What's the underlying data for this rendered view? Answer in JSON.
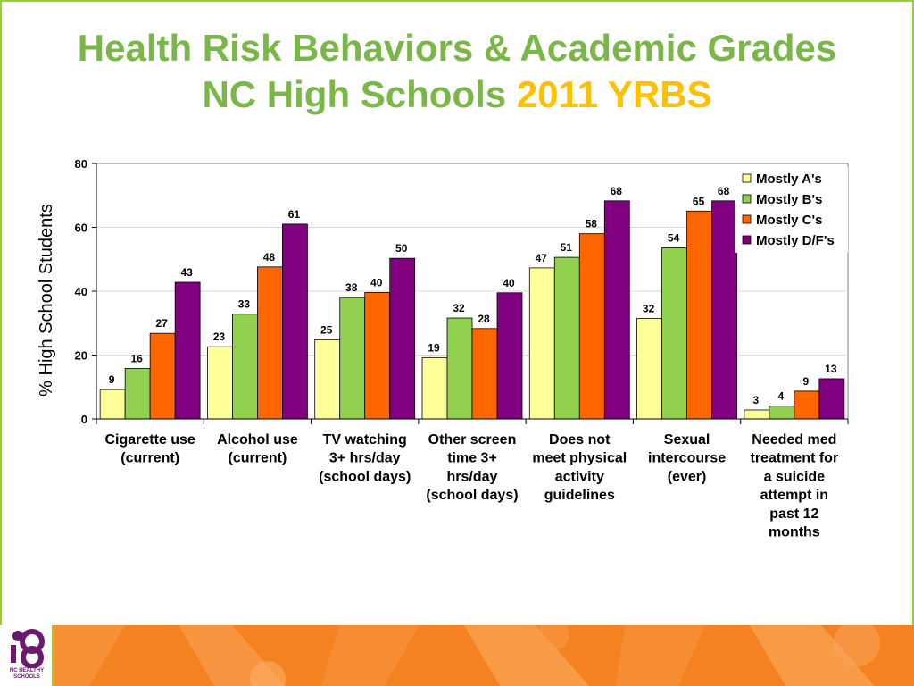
{
  "slide": {
    "title_line1": "Health Risk Behaviors & Academic Grades",
    "title_line2_green": "NC High Schools",
    "title_line2_accent": "2011 YRBS",
    "logo_text": "NC HEALTHY SCHOOLS",
    "colors": {
      "title_green": "#7AB648",
      "title_accent": "#FFC000",
      "frame": "#9ACD32",
      "footer_orange": "#F58220"
    }
  },
  "chart_data": {
    "type": "bar",
    "ylabel": "% High School Students",
    "xlabel": "",
    "ylim": [
      0,
      80
    ],
    "yticks": [
      0,
      20,
      40,
      60,
      80
    ],
    "grid": true,
    "legend_position": "top-right",
    "categories": [
      [
        "Cigarette use",
        "(current)"
      ],
      [
        "Alcohol use",
        "(current)"
      ],
      [
        "TV watching",
        "3+ hrs/day",
        "(school days)"
      ],
      [
        "Other screen",
        "time 3+",
        "hrs/day",
        "(school days)"
      ],
      [
        "Does not",
        "meet physical",
        "activity",
        "guidelines"
      ],
      [
        "Sexual",
        "intercourse",
        "(ever)"
      ],
      [
        "Needed med",
        "treatment for",
        "a suicide",
        "attempt in",
        "past 12",
        "months"
      ]
    ],
    "series": [
      {
        "name": "Mostly A's",
        "color": "#FFFF99",
        "values": [
          9,
          23,
          25,
          19,
          47,
          32,
          3
        ]
      },
      {
        "name": "Mostly B's",
        "color": "#92D050",
        "values": [
          16,
          33,
          38,
          32,
          51,
          54,
          4
        ]
      },
      {
        "name": "Mostly C's",
        "color": "#FF6600",
        "values": [
          27,
          48,
          40,
          28,
          58,
          65,
          9
        ]
      },
      {
        "name": "Mostly D/F's",
        "color": "#800080",
        "values": [
          43,
          61,
          50,
          40,
          68,
          68,
          13
        ]
      }
    ],
    "plot_values": [
      [
        9.2,
        22.6,
        24.8,
        19.2,
        47.3,
        31.5,
        2.8
      ],
      [
        15.8,
        32.8,
        38.0,
        31.6,
        50.6,
        53.6,
        4.0
      ],
      [
        26.8,
        47.6,
        39.6,
        28.3,
        58.0,
        65.1,
        8.7
      ],
      [
        42.8,
        61.0,
        50.3,
        39.5,
        68.3,
        68.3,
        12.6
      ]
    ]
  }
}
